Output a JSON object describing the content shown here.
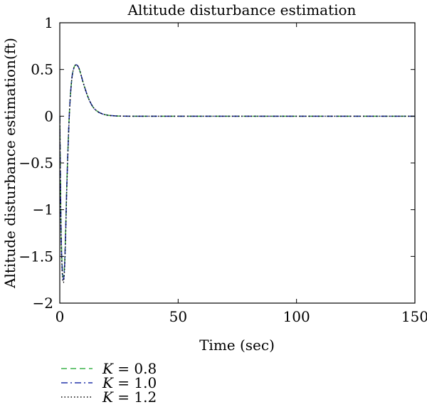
{
  "chart_data": {
    "type": "line",
    "title": "Altitude disturbance estimation",
    "xlabel": "Time (sec)",
    "ylabel": "Altitude disturbance estimation(ft)",
    "xlim": [
      0,
      150
    ],
    "ylim": [
      -2,
      1
    ],
    "xticks": [
      0,
      50,
      100,
      150
    ],
    "xtick_labels": [
      "0",
      "50",
      "100",
      "150"
    ],
    "yticks": [
      1,
      0.5,
      0,
      -0.5,
      -1,
      -1.5,
      -2
    ],
    "ytick_labels": [
      "1",
      "0.5",
      "0",
      "−0.5",
      "−1",
      "−1.5",
      "−2"
    ],
    "grid": false,
    "legend_position": "below-left",
    "series": [
      {
        "name": "K = 0.8",
        "legend_symbol": "K",
        "legend_value": " = 0.8",
        "color": "#3cb34a",
        "style": "dashed",
        "x": [
          0,
          0.5,
          1,
          1.5,
          2,
          2.5,
          3,
          4,
          5,
          6,
          7,
          8,
          9,
          10,
          12,
          14,
          16,
          18,
          20,
          22,
          25,
          30,
          40,
          60,
          80,
          100,
          120,
          150
        ],
        "y": [
          0,
          -1.1,
          -1.6,
          -1.72,
          -1.6,
          -1.2,
          -0.7,
          0.0,
          0.38,
          0.52,
          0.55,
          0.52,
          0.44,
          0.35,
          0.2,
          0.1,
          0.05,
          0.025,
          0.012,
          0.006,
          0.002,
          0,
          0,
          0,
          0,
          0,
          0,
          0
        ]
      },
      {
        "name": "K = 1.0",
        "legend_symbol": "K",
        "legend_value": " = 1.0",
        "color": "#2233aa",
        "style": "dashdot",
        "x": [
          0,
          0.5,
          1,
          1.5,
          2,
          2.5,
          3,
          4,
          5,
          6,
          7,
          8,
          9,
          10,
          12,
          14,
          16,
          18,
          20,
          22,
          25,
          30,
          40,
          60,
          80,
          100,
          120,
          150
        ],
        "y": [
          0,
          -1.15,
          -1.62,
          -1.75,
          -1.62,
          -1.22,
          -0.72,
          0.0,
          0.38,
          0.52,
          0.55,
          0.52,
          0.44,
          0.35,
          0.2,
          0.1,
          0.05,
          0.025,
          0.012,
          0.006,
          0.002,
          0,
          0,
          0,
          0,
          0,
          0,
          0
        ]
      },
      {
        "name": "K = 1.2",
        "legend_symbol": "K",
        "legend_value": " = 1.2",
        "color": "#000000",
        "style": "dotted",
        "x": [
          0,
          0.5,
          1,
          1.5,
          2,
          2.5,
          3,
          4,
          5,
          6,
          7,
          8,
          9,
          10,
          12,
          14,
          16,
          18,
          20,
          22,
          25,
          30,
          40,
          60,
          80,
          100,
          120,
          150
        ],
        "y": [
          0,
          -1.2,
          -1.65,
          -1.78,
          -1.65,
          -1.25,
          -0.74,
          0.0,
          0.38,
          0.52,
          0.55,
          0.52,
          0.44,
          0.35,
          0.2,
          0.1,
          0.05,
          0.025,
          0.012,
          0.006,
          0.002,
          0,
          0,
          0,
          0,
          0,
          0,
          0
        ]
      }
    ]
  }
}
